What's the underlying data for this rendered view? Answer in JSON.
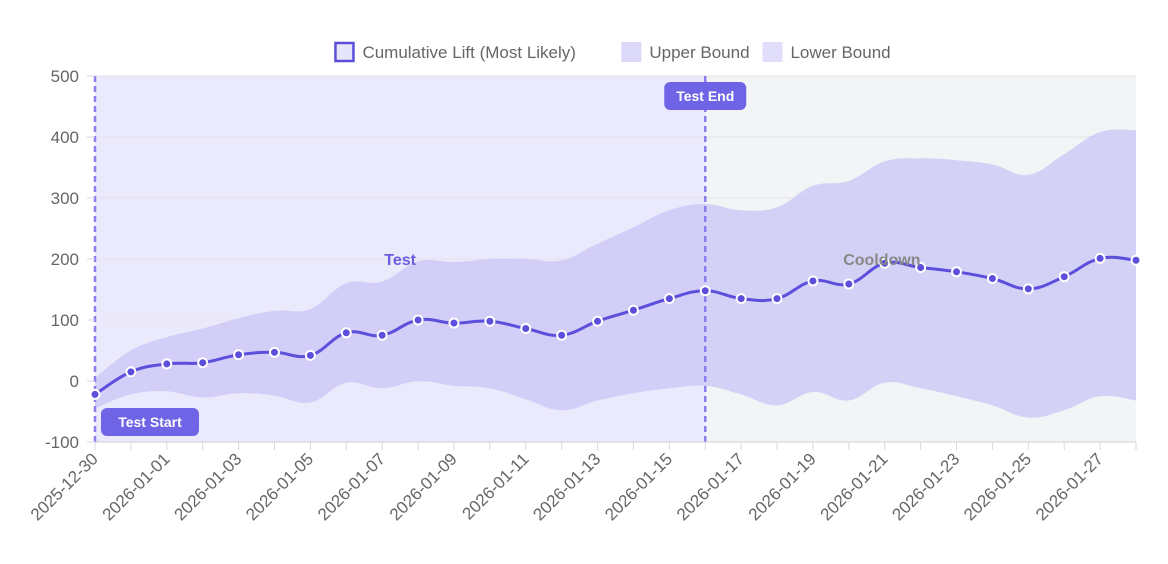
{
  "chart_data": {
    "type": "area",
    "x": [
      "2025-12-30",
      "2025-12-31",
      "2026-01-01",
      "2026-01-02",
      "2026-01-03",
      "2026-01-04",
      "2026-01-05",
      "2026-01-06",
      "2026-01-07",
      "2026-01-08",
      "2026-01-09",
      "2026-01-10",
      "2026-01-11",
      "2026-01-12",
      "2026-01-13",
      "2026-01-14",
      "2026-01-15",
      "2026-01-16",
      "2026-01-17",
      "2026-01-18",
      "2026-01-19",
      "2026-01-20",
      "2026-01-21",
      "2026-01-22",
      "2026-01-23",
      "2026-01-24",
      "2026-01-25",
      "2026-01-26",
      "2026-01-27",
      "2026-01-28"
    ],
    "x_tick_labels": [
      "2025-12-30",
      "2026-01-01",
      "2026-01-03",
      "2026-01-05",
      "2026-01-07",
      "2026-01-09",
      "2026-01-11",
      "2026-01-13",
      "2026-01-15",
      "2026-01-17",
      "2026-01-19",
      "2026-01-21",
      "2026-01-23",
      "2026-01-25",
      "2026-01-27"
    ],
    "y_ticks": [
      "500",
      "400",
      "300",
      "200",
      "100",
      "0",
      "-100"
    ],
    "ylim": [
      -100,
      500
    ],
    "grid": true,
    "legend_position": "top",
    "series": [
      {
        "name": "Cumulative Lift (Most Likely)",
        "color": "#5b4fdb",
        "values": [
          -22,
          15,
          28,
          30,
          43,
          47,
          42,
          79,
          75,
          100,
          95,
          98,
          86,
          75,
          98,
          116,
          135,
          148,
          135,
          135,
          164,
          159,
          193,
          186,
          179,
          168,
          151,
          171,
          201,
          198
        ]
      },
      {
        "name": "Upper Bound",
        "color": "#dcd8fa",
        "values": [
          5,
          50,
          72,
          86,
          103,
          115,
          118,
          160,
          163,
          196,
          195,
          200,
          200,
          198,
          225,
          252,
          280,
          290,
          280,
          285,
          320,
          328,
          360,
          365,
          362,
          355,
          338,
          372,
          408,
          411
        ]
      },
      {
        "name": "Lower Bound",
        "color": "#e1defb",
        "values": [
          -45,
          -22,
          -17,
          -27,
          -20,
          -24,
          -35,
          -3,
          -12,
          0,
          -8,
          -12,
          -30,
          -48,
          -32,
          -20,
          -12,
          -8,
          -22,
          -40,
          -18,
          -32,
          -3,
          -12,
          -25,
          -40,
          -60,
          -48,
          -25,
          -32
        ]
      }
    ],
    "annotations": {
      "regions": [
        {
          "label": "Test",
          "x_start": "2025-12-30",
          "x_end": "2026-01-16",
          "fill": "#ebe9fc",
          "label_color": "#6b5ee0"
        },
        {
          "label": "Cooldown",
          "x_start": "2026-01-16",
          "x_end": "2026-01-28",
          "fill": "#f3f4f6",
          "label_color": "#888888"
        }
      ],
      "lines": [
        {
          "label": "Test Start",
          "x": "2025-12-30",
          "color": "#8b7ff0"
        },
        {
          "label": "Test End",
          "x": "2026-01-16",
          "color": "#8b7ff0"
        }
      ]
    }
  }
}
